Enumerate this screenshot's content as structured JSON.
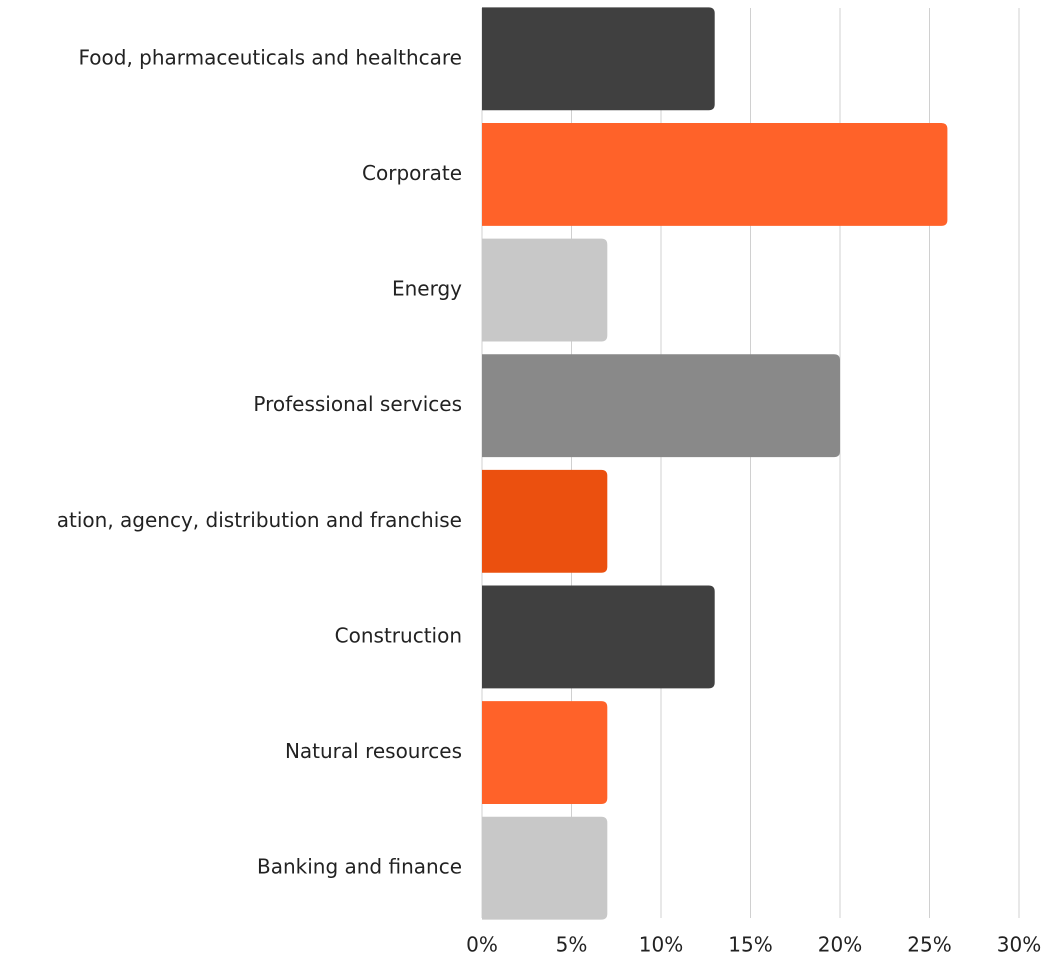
{
  "chart_data": {
    "type": "barh",
    "categories": [
      "Food, pharmaceuticals and healthcare",
      "Corporate",
      "Energy",
      "Professional services",
      "ation, agency, distribution and franchise",
      "Construction",
      "Natural resources",
      "Banking and finance"
    ],
    "values": [
      13,
      26,
      7,
      20,
      7,
      13,
      7,
      7
    ],
    "colors": [
      "#404040",
      "#ff6229",
      "#c8c8c8",
      "#898989",
      "#eb500f",
      "#404040",
      "#ff6229",
      "#c8c8c8"
    ],
    "xlim": [
      0,
      30
    ],
    "xticks": [
      {
        "value": 0,
        "label": "0%"
      },
      {
        "value": 5,
        "label": "5%"
      },
      {
        "value": 10,
        "label": "10%"
      },
      {
        "value": 15,
        "label": "15%"
      },
      {
        "value": 20,
        "label": "20%"
      },
      {
        "value": 25,
        "label": "25%"
      },
      {
        "value": 30,
        "label": "30%"
      }
    ],
    "grid": true
  }
}
